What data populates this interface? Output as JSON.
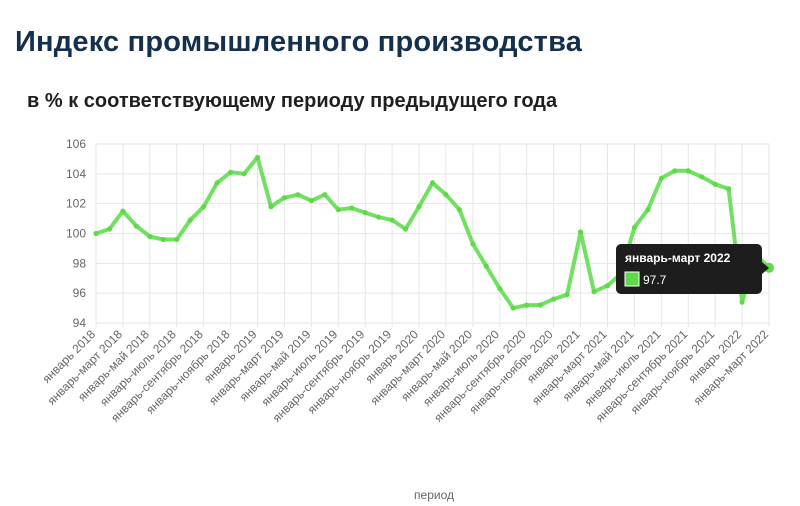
{
  "page": {
    "title": "Индекс промышленного производства",
    "subtitle": "в % к соответствующему периоду предыдущего года"
  },
  "colors": {
    "line": "#72e062",
    "point": "#5fd94a",
    "grid": "#e6e6e6",
    "tooltip_bg": "#1d1d1d",
    "title": "#14304d"
  },
  "chart_data": {
    "type": "line",
    "title": "Индекс промышленного производства",
    "subtitle": "в % к соответствующему периоду предыдущего года",
    "xlabel": "период",
    "ylabel": "",
    "ylim": [
      94,
      106
    ],
    "yticks": [
      94,
      96,
      98,
      100,
      102,
      104,
      106
    ],
    "grid": true,
    "x": [
      "январь 2018",
      "январь-февраль 2018",
      "январь-март 2018",
      "январь-апрель 2018",
      "январь-май 2018",
      "январь-июнь 2018",
      "январь-июль 2018",
      "январь-август 2018",
      "январь-сентябрь 2018",
      "январь-октябрь 2018",
      "январь-ноябрь 2018",
      "январь-декабрь 2018",
      "январь 2019",
      "январь-февраль 2019",
      "январь-март 2019",
      "январь-апрель 2019",
      "январь-май 2019",
      "январь-июнь 2019",
      "январь-июль 2019",
      "январь-август 2019",
      "январь-сентябрь 2019",
      "январь-октябрь 2019",
      "январь-ноябрь 2019",
      "январь-декабрь 2019",
      "январь 2020",
      "январь-февраль 2020",
      "январь-март 2020",
      "январь-апрель 2020",
      "январь-май 2020",
      "январь-июнь 2020",
      "январь-июль 2020",
      "январь-август 2020",
      "январь-сентябрь 2020",
      "январь-октябрь 2020",
      "январь-ноябрь 2020",
      "январь-декабрь 2020",
      "январь 2021",
      "январь-февраль 2021",
      "январь-март 2021",
      "январь-апрель 2021",
      "январь-май 2021",
      "январь-июнь 2021",
      "январь-июль 2021",
      "январь-август 2021",
      "январь-сентябрь 2021",
      "январь-октябрь 2021",
      "январь-ноябрь 2021",
      "январь-декабрь 2021",
      "январь 2022",
      "январь-февраль 2022",
      "январь-март 2022"
    ],
    "x_tick_labels": [
      "январь 2018",
      "январь-март 2018",
      "январь-май 2018",
      "январь-июль 2018",
      "январь-сентябрь 2018",
      "январь-ноябрь 2018",
      "январь 2019",
      "январь-март 2019",
      "январь-май 2019",
      "январь-июль 2019",
      "январь-сентябрь 2019",
      "январь-ноябрь 2019",
      "январь 2020",
      "январь-март 2020",
      "январь-май 2020",
      "январь-июль 2020",
      "январь-сентябрь 2020",
      "январь-ноябрь 2020",
      "январь 2021",
      "январь-март 2021",
      "январь-май 2021",
      "январь-июль 2021",
      "январь-сентябрь 2021",
      "январь-ноябрь 2021",
      "январь 2022",
      "январь-март 2022"
    ],
    "series": [
      {
        "values": [
          100.0,
          100.3,
          101.5,
          100.5,
          99.8,
          99.6,
          99.6,
          100.9,
          101.8,
          103.4,
          104.1,
          104.0,
          105.1,
          101.8,
          102.4,
          102.6,
          102.2,
          102.6,
          101.6,
          101.7,
          101.4,
          101.1,
          100.9,
          100.3,
          101.8,
          103.4,
          102.6,
          101.6,
          99.3,
          97.8,
          96.3,
          95.0,
          95.2,
          95.2,
          95.6,
          95.9,
          100.1,
          96.1,
          96.5,
          97.3,
          100.4,
          101.6,
          103.7,
          104.2,
          104.2,
          103.8,
          103.3,
          103.0,
          95.4,
          98.6,
          97.7
        ]
      }
    ],
    "tooltip": {
      "label": "январь-март 2022",
      "value": "97.7"
    }
  }
}
